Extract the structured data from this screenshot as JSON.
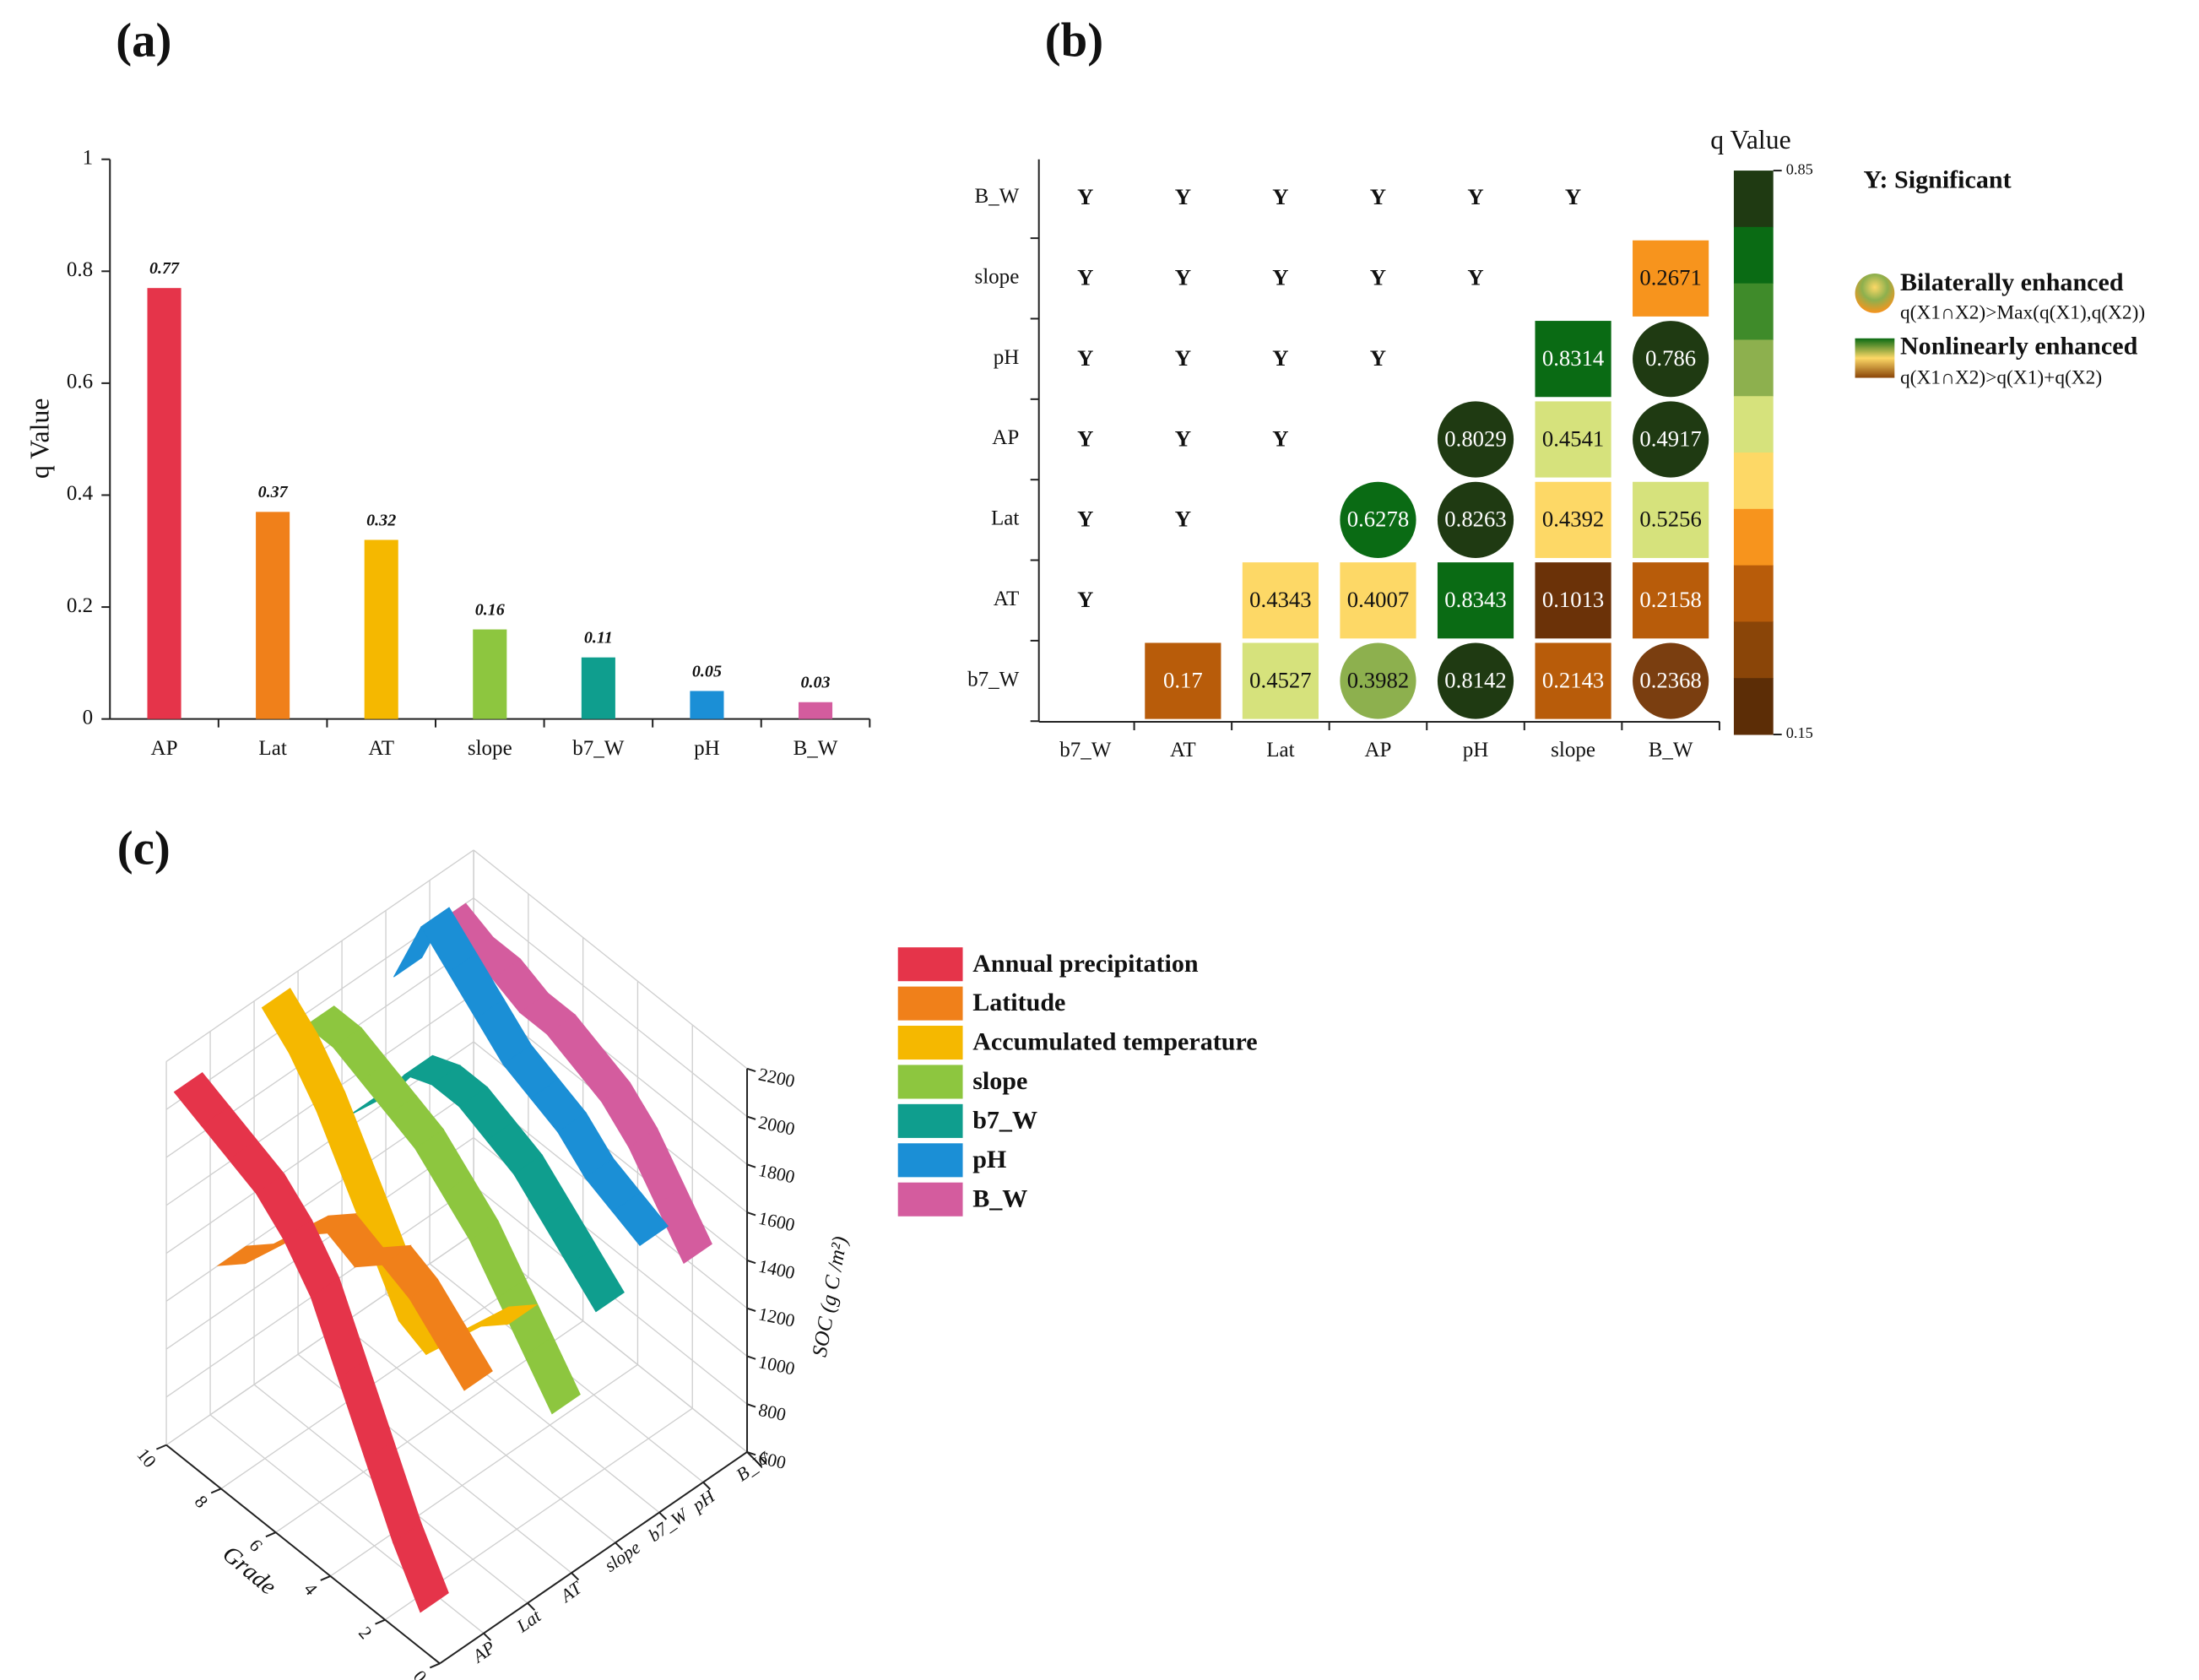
{
  "chart_data": [
    {
      "type": "bar",
      "panel_label": "(a)",
      "ylabel": "q Value",
      "categories": [
        "AP",
        "Lat",
        "AT",
        "slope",
        "b7_W",
        "pH",
        "B_W"
      ],
      "values": [
        0.77,
        0.37,
        0.32,
        0.16,
        0.11,
        0.05,
        0.03
      ],
      "colors": [
        "#e5344a",
        "#f0801a",
        "#f5b800",
        "#8dc63f",
        "#0f9e8e",
        "#1b8fd6",
        "#d45c9e"
      ],
      "ylim": [
        0,
        1
      ],
      "yticks": [
        0,
        0.2,
        0.4,
        0.6,
        0.8,
        1
      ]
    },
    {
      "type": "heatmap",
      "panel_label": "(b)",
      "xcategories": [
        "b7_W",
        "AT",
        "Lat",
        "AP",
        "pH",
        "slope",
        "B_W"
      ],
      "ycategories": [
        "b7_W",
        "AT",
        "Lat",
        "AP",
        "pH",
        "slope",
        "B_W"
      ],
      "cells": [
        {
          "x": "AT",
          "y": "b7_W",
          "value": 0.17,
          "shape": "square",
          "color": "#b85c0a"
        },
        {
          "x": "Lat",
          "y": "b7_W",
          "value": 0.4527,
          "shape": "square",
          "color": "#d6e27c"
        },
        {
          "x": "AP",
          "y": "b7_W",
          "value": 0.3982,
          "shape": "circle",
          "color": "#8db04e"
        },
        {
          "x": "pH",
          "y": "b7_W",
          "value": 0.8142,
          "shape": "circle",
          "color": "#1f3a12"
        },
        {
          "x": "slope",
          "y": "b7_W",
          "value": 0.2143,
          "shape": "square",
          "color": "#b85c0a"
        },
        {
          "x": "B_W",
          "y": "b7_W",
          "value": 0.2368,
          "shape": "circle",
          "color": "#7a3e10"
        },
        {
          "x": "Lat",
          "y": "AT",
          "value": 0.4343,
          "shape": "square",
          "color": "#fdd866"
        },
        {
          "x": "AP",
          "y": "AT",
          "value": 0.4007,
          "shape": "square",
          "color": "#fdd866"
        },
        {
          "x": "pH",
          "y": "AT",
          "value": 0.8343,
          "shape": "square",
          "color": "#0a6b14"
        },
        {
          "x": "slope",
          "y": "AT",
          "value": 0.1013,
          "shape": "square",
          "color": "#6b3208"
        },
        {
          "x": "B_W",
          "y": "AT",
          "value": 0.2158,
          "shape": "square",
          "color": "#b85c0a"
        },
        {
          "x": "AP",
          "y": "Lat",
          "value": 0.6278,
          "shape": "circle",
          "color": "#0a6b14"
        },
        {
          "x": "pH",
          "y": "Lat",
          "value": 0.8263,
          "shape": "circle",
          "color": "#1f3a12"
        },
        {
          "x": "slope",
          "y": "Lat",
          "value": 0.4392,
          "shape": "square",
          "color": "#fdd866"
        },
        {
          "x": "B_W",
          "y": "Lat",
          "value": 0.5256,
          "shape": "square",
          "color": "#d6e27c"
        },
        {
          "x": "pH",
          "y": "AP",
          "value": 0.8029,
          "shape": "circle",
          "color": "#1f3a12"
        },
        {
          "x": "slope",
          "y": "AP",
          "value": 0.4541,
          "shape": "square",
          "color": "#d6e27c"
        },
        {
          "x": "B_W",
          "y": "AP",
          "value": 0.4917,
          "shape": "circle",
          "color": "#1f3a12"
        },
        {
          "x": "slope",
          "y": "pH",
          "value": 0.8314,
          "shape": "square",
          "color": "#0a6b14"
        },
        {
          "x": "B_W",
          "y": "pH",
          "value": 0.786,
          "shape": "circle",
          "color": "#1f3a12"
        },
        {
          "x": "B_W",
          "y": "slope",
          "value": 0.2671,
          "shape": "square",
          "color": "#f7941d"
        }
      ],
      "significant_label": "Y",
      "significant": [
        {
          "x": "b7_W",
          "y": "AT"
        },
        {
          "x": "b7_W",
          "y": "Lat"
        },
        {
          "x": "AT",
          "y": "Lat"
        },
        {
          "x": "b7_W",
          "y": "AP"
        },
        {
          "x": "AT",
          "y": "AP"
        },
        {
          "x": "Lat",
          "y": "AP"
        },
        {
          "x": "b7_W",
          "y": "pH"
        },
        {
          "x": "AT",
          "y": "pH"
        },
        {
          "x": "Lat",
          "y": "pH"
        },
        {
          "x": "AP",
          "y": "pH"
        },
        {
          "x": "b7_W",
          "y": "slope"
        },
        {
          "x": "AT",
          "y": "slope"
        },
        {
          "x": "Lat",
          "y": "slope"
        },
        {
          "x": "AP",
          "y": "slope"
        },
        {
          "x": "pH",
          "y": "slope"
        },
        {
          "x": "b7_W",
          "y": "B_W"
        },
        {
          "x": "AT",
          "y": "B_W"
        },
        {
          "x": "Lat",
          "y": "B_W"
        },
        {
          "x": "AP",
          "y": "B_W"
        },
        {
          "x": "pH",
          "y": "B_W"
        },
        {
          "x": "slope",
          "y": "B_W"
        }
      ],
      "colorbar_title": "q Value",
      "colorbar_colors": [
        "#1f3a12",
        "#0a6b14",
        "#3f8b2a",
        "#8db04e",
        "#d6e27c",
        "#fdd866",
        "#f7941d",
        "#b85c0a",
        "#8a4508",
        "#5c2d06"
      ],
      "clim": [
        0.15,
        0.85
      ],
      "cticks": [
        0.85,
        0.15
      ],
      "legend": {
        "significant": "Y: Significant",
        "bilateral": "Bilaterally enhanced",
        "bilateral_rule": "q(X1∩X2)>Max(q(X1),q(X2))",
        "nonlinear": "Nonlinearly enhanced",
        "nonlinear_rule": "q(X1∩X2)>q(X1)+q(X2)"
      }
    },
    {
      "type": "ribbon3d",
      "panel_label": "(c)",
      "xlabel": "Grade",
      "zlabel": "SOC (g C /m²)",
      "x": [
        1,
        2,
        3,
        4,
        5,
        6,
        7,
        8,
        9,
        10
      ],
      "xlim": [
        0,
        10
      ],
      "xticks": [
        0,
        2,
        4,
        6,
        8,
        10
      ],
      "zlim": [
        600,
        2200
      ],
      "zticks": [
        600,
        800,
        1000,
        1200,
        1400,
        1600,
        1800,
        2000,
        2200
      ],
      "categories": [
        "AP",
        "Lat",
        "AT",
        "slope",
        "b7_W",
        "pH",
        "B_W"
      ],
      "series": [
        {
          "name": "Annual precipitation",
          "color": "#e5344a",
          "values": [
            700,
            900,
            1150,
            1400,
            1650,
            1800,
            1900,
            1950,
            2000,
            2050
          ]
        },
        {
          "name": "Latitude",
          "color": "#f0801a",
          "values": [
            1500,
            1600,
            1700,
            1750,
            1650,
            1700,
            1600,
            1450,
            1300,
            1200
          ]
        },
        {
          "name": "Accumulated temperature",
          "color": "#f5b800",
          "values": [
            1650,
            1550,
            1400,
            1250,
            1300,
            1500,
            1700,
            1900,
            2050,
            2150
          ]
        },
        {
          "name": "slope",
          "color": "#8dc63f",
          "values": [
            1150,
            1300,
            1450,
            1600,
            1700,
            1800,
            1850,
            1900,
            1950,
            1950
          ]
        },
        {
          "name": "b7_W",
          "color": "#0f9e8e",
          "values": [
            1450,
            1550,
            1650,
            1750,
            1800,
            1850,
            1850,
            1800,
            1600,
            1450
          ]
        },
        {
          "name": "pH",
          "color": "#1b8fd6",
          "values": [
            1600,
            1650,
            1700,
            1800,
            1850,
            1900,
            2000,
            2100,
            2200,
            1900
          ]
        },
        {
          "name": "B_W",
          "color": "#d45c9e",
          "values": [
            1400,
            1550,
            1700,
            1800,
            1850,
            1900,
            1900,
            1950,
            1950,
            2000
          ]
        }
      ]
    }
  ]
}
